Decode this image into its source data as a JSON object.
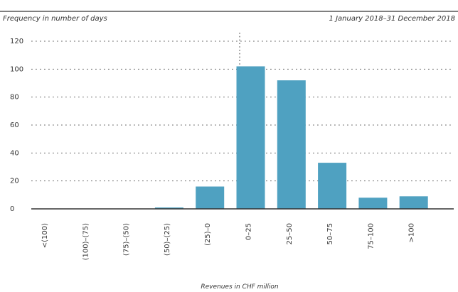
{
  "chart_data": {
    "type": "bar",
    "title": "",
    "subtitle_left": "Frequency in number of days",
    "subtitle_right": "1 January 2018–31 December 2018",
    "xlabel": "Revenues in CHF million",
    "ylabel": "",
    "categories": [
      "<(100)",
      "(100)–(75)",
      "(75)–(50)",
      "(50)–(25)",
      "(25)–0",
      "0–25",
      "25–50",
      "50–75",
      "75–100",
      ">100"
    ],
    "values": [
      0,
      0,
      0,
      1,
      16,
      102,
      92,
      33,
      8,
      9
    ],
    "ylim": [
      0,
      120
    ],
    "yticks": [
      0,
      20,
      40,
      60,
      80,
      100,
      120
    ],
    "grid": true,
    "bar_color": "#4fa1c1",
    "legend": "none",
    "zero_divider_between": [
      "(25)–0",
      "0–25"
    ]
  },
  "colors": {
    "bar": "#4fa1c1",
    "axis": "#333333",
    "grid": "#666666",
    "divider": "#333333",
    "text": "#333333"
  }
}
